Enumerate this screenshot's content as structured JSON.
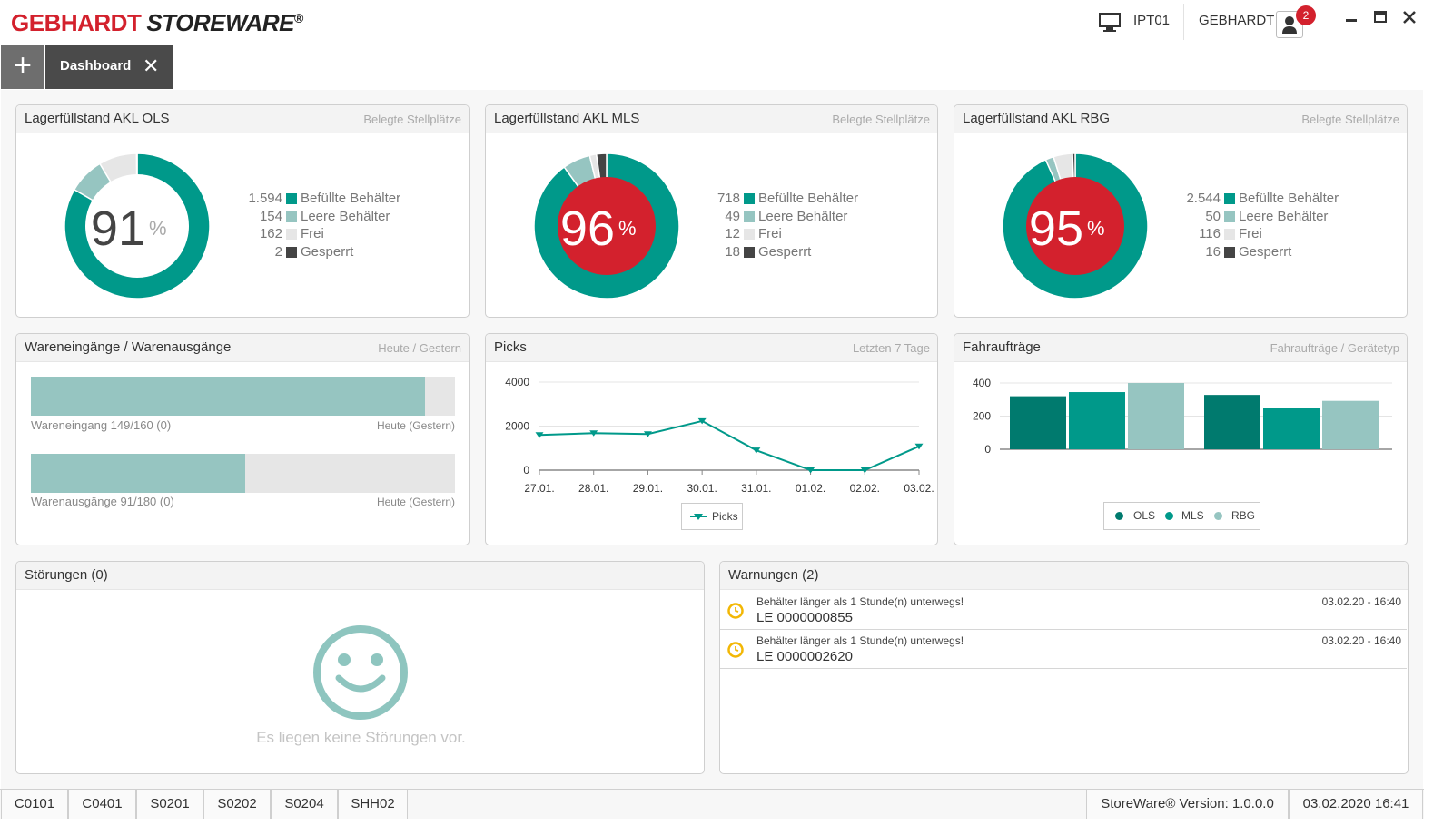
{
  "brand": {
    "part1": "GEBHARDT",
    "part2": "STOREWARE",
    "reg": "®"
  },
  "header": {
    "station": "IPT01",
    "user": "GEBHARDT",
    "notifications": "2"
  },
  "tabs": {
    "add": "+",
    "active": "Dashboard",
    "close": "✕"
  },
  "colors": {
    "teal": "#00998a",
    "light_teal": "#96c5c1",
    "free": "#e6e6e6",
    "locked": "#444444",
    "alert_red": "#d3212d",
    "warn_yellow": "#f2b705"
  },
  "fill_panels": [
    {
      "title": "Lagerfüllstand AKL OLS",
      "subtitle": "Belegte Stellplätze",
      "percent": "91",
      "unit": "%",
      "alert": false,
      "legend": [
        {
          "value": "1.594",
          "label": "Befüllte Behälter"
        },
        {
          "value": "154",
          "label": "Leere Behälter"
        },
        {
          "value": "162",
          "label": "Frei"
        },
        {
          "value": "2",
          "label": "Gesperrt"
        }
      ],
      "counts": [
        1594,
        154,
        162,
        2
      ]
    },
    {
      "title": "Lagerfüllstand AKL MLS",
      "subtitle": "Belegte Stellplätze",
      "percent": "96",
      "unit": "%",
      "alert": true,
      "legend": [
        {
          "value": "718",
          "label": "Befüllte Behälter"
        },
        {
          "value": "49",
          "label": "Leere Behälter"
        },
        {
          "value": "12",
          "label": "Frei"
        },
        {
          "value": "18",
          "label": "Gesperrt"
        }
      ],
      "counts": [
        718,
        49,
        12,
        18
      ]
    },
    {
      "title": "Lagerfüllstand AKL RBG",
      "subtitle": "Belegte Stellplätze",
      "percent": "95",
      "unit": "%",
      "alert": true,
      "legend": [
        {
          "value": "2.544",
          "label": "Befüllte Behälter"
        },
        {
          "value": "50",
          "label": "Leere Behälter"
        },
        {
          "value": "116",
          "label": "Frei"
        },
        {
          "value": "16",
          "label": "Gesperrt"
        }
      ],
      "counts": [
        2544,
        50,
        116,
        16
      ]
    }
  ],
  "goods": {
    "title": "Wareneingänge / Warenausgänge",
    "subtitle": "Heute / Gestern",
    "inbound": {
      "label": "Wareneingang 149/160 (0)",
      "right": "Heute (Gestern)",
      "ratio": 0.93
    },
    "outbound": {
      "label": "Warenausgänge 91/180 (0)",
      "right": "Heute (Gestern)",
      "ratio": 0.5056
    }
  },
  "picks": {
    "title": "Picks",
    "subtitle": "Letzten 7 Tage",
    "legend": "Picks"
  },
  "trips": {
    "title": "Fahraufträge",
    "subtitle": "Fahraufträge / Gerätetyp"
  },
  "chart_data": [
    {
      "type": "line",
      "x": [
        "27.01.",
        "28.01.",
        "29.01.",
        "30.01.",
        "31.01.",
        "01.02.",
        "02.02.",
        "03.02."
      ],
      "series": [
        {
          "name": "Picks",
          "values": [
            1600,
            1680,
            1640,
            2230,
            900,
            0,
            0,
            1080
          ]
        }
      ],
      "yticks": [
        "0",
        "2000",
        "4000"
      ],
      "ylim": [
        0,
        4000
      ],
      "grid": true,
      "legend": "bottom"
    },
    {
      "type": "bar",
      "categories": [
        "",
        ""
      ],
      "series": [
        {
          "name": "OLS",
          "values": [
            320,
            328
          ]
        },
        {
          "name": "MLS",
          "values": [
            345,
            248
          ]
        },
        {
          "name": "RBG",
          "values": [
            400,
            292
          ]
        }
      ],
      "yticks": [
        "0",
        "200",
        "400"
      ],
      "ylim": [
        0,
        400
      ],
      "grid": true,
      "legend": "bottom"
    }
  ],
  "disturbances": {
    "title": "Störungen (0)",
    "empty_text": "Es liegen keine Störungen vor."
  },
  "warnings": {
    "title": "Warnungen (2)",
    "items": [
      {
        "title": "Behälter länger als 1 Stunde(n) unterwegs!",
        "id": "LE 0000000855",
        "time": "03.02.20 - 16:40"
      },
      {
        "title": "Behälter länger als 1 Stunde(n) unterwegs!",
        "id": "LE 0000002620",
        "time": "03.02.20 - 16:40"
      }
    ]
  },
  "statusbar": {
    "items": [
      "C0101",
      "C0401",
      "S0201",
      "S0202",
      "S0204",
      "SHH02"
    ],
    "version": "StoreWare® Version: 1.0.0.0",
    "datetime": "03.02.2020 16:41"
  }
}
